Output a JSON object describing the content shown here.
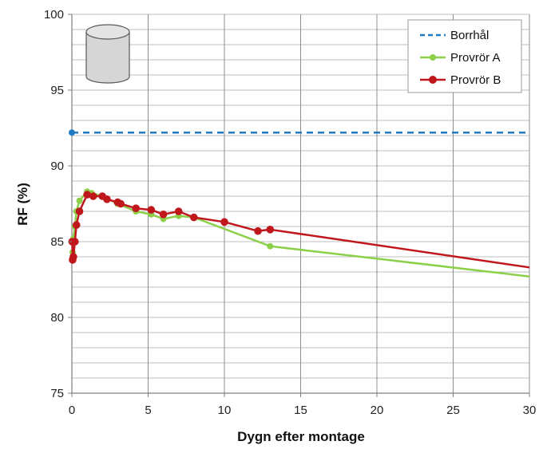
{
  "chart_data": {
    "type": "line",
    "xlabel": "Dygn efter montage",
    "ylabel": "RF (%)",
    "xlim": [
      0,
      30
    ],
    "ylim": [
      75,
      100
    ],
    "x_ticks": [
      0,
      5,
      10,
      15,
      20,
      25,
      30
    ],
    "y_ticks": [
      75,
      80,
      85,
      90,
      95,
      100
    ],
    "y_minor_step": 1,
    "grid": true,
    "legend_position": "top-right",
    "series": [
      {
        "name": "Borrhål",
        "style": "dashed",
        "color": "#1f7ac4",
        "points": [
          [
            0,
            92.2
          ],
          [
            30,
            92.2
          ]
        ],
        "markers": [
          [
            0,
            92.2
          ]
        ]
      },
      {
        "name": "Provrör A",
        "style": "solid",
        "color": "#8cd04a",
        "points": [
          [
            0.05,
            84.3
          ],
          [
            0.1,
            85.2
          ],
          [
            0.2,
            86.0
          ],
          [
            0.3,
            87.0
          ],
          [
            0.5,
            87.7
          ],
          [
            1.0,
            88.3
          ],
          [
            1.3,
            88.2
          ],
          [
            2.0,
            88.0
          ],
          [
            3.0,
            87.5
          ],
          [
            4.2,
            87.0
          ],
          [
            5.2,
            86.8
          ],
          [
            6.0,
            86.5
          ],
          [
            7.0,
            86.7
          ],
          [
            8.0,
            86.6
          ],
          [
            13.0,
            84.7
          ],
          [
            30.0,
            82.7
          ]
        ],
        "markers_count": 15
      },
      {
        "name": "Provrör B",
        "style": "solid",
        "color": "#c0171d",
        "points": [
          [
            0.02,
            85.0
          ],
          [
            0.05,
            83.8
          ],
          [
            0.1,
            84.0
          ],
          [
            0.2,
            85.0
          ],
          [
            0.3,
            86.1
          ],
          [
            0.5,
            87.0
          ],
          [
            1.0,
            88.1
          ],
          [
            1.4,
            88.0
          ],
          [
            2.0,
            88.0
          ],
          [
            2.3,
            87.8
          ],
          [
            3.0,
            87.6
          ],
          [
            3.2,
            87.5
          ],
          [
            4.2,
            87.2
          ],
          [
            5.2,
            87.1
          ],
          [
            6.0,
            86.8
          ],
          [
            7.0,
            87.0
          ],
          [
            8.0,
            86.6
          ],
          [
            10.0,
            86.3
          ],
          [
            12.2,
            85.7
          ],
          [
            13.0,
            85.8
          ],
          [
            30.0,
            83.3
          ]
        ],
        "markers_count": 20
      }
    ]
  },
  "colors": {
    "background": "#ffffff",
    "grid": "#bfbfbf",
    "axis": "#7f7f7f",
    "cylinder_fill": "#d6d6d6",
    "cylinder_stroke": "#595959"
  }
}
